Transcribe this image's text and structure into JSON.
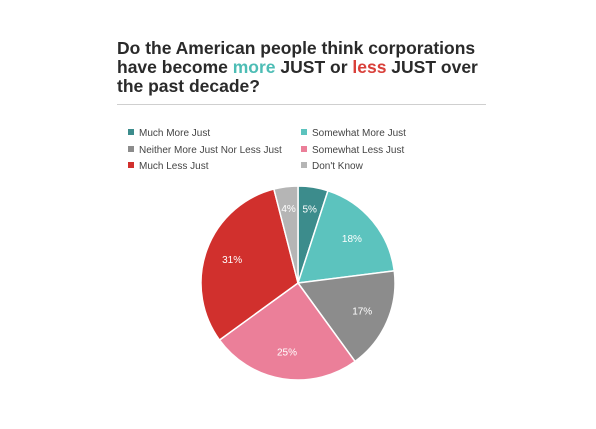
{
  "chart_data": {
    "type": "pie",
    "title": {
      "part1": "Do the American people think corporations have become ",
      "more": "more",
      "part2": " JUST or ",
      "less": "less",
      "part3": " JUST over the past decade?"
    },
    "title_highlight_colors": {
      "more": "#4dbdb5",
      "less": "#d9403a"
    },
    "legend_placement": "top",
    "slices": [
      {
        "label": "Much More Just",
        "value": 5,
        "display": "5%",
        "color": "#3c8c8c"
      },
      {
        "label": "Somewhat More Just",
        "value": 18,
        "display": "18%",
        "color": "#5cc3be"
      },
      {
        "label": "Neither More Just Nor Less Just",
        "value": 17,
        "display": "17%",
        "color": "#8c8c8c"
      },
      {
        "label": "Somewhat Less Just",
        "value": 25,
        "display": "25%",
        "color": "#eb7f99"
      },
      {
        "label": "Much Less Just",
        "value": 31,
        "display": "31%",
        "color": "#d1302d"
      },
      {
        "label": "Don't Know",
        "value": 4,
        "display": "4%",
        "color": "#b5b5b5"
      }
    ]
  }
}
